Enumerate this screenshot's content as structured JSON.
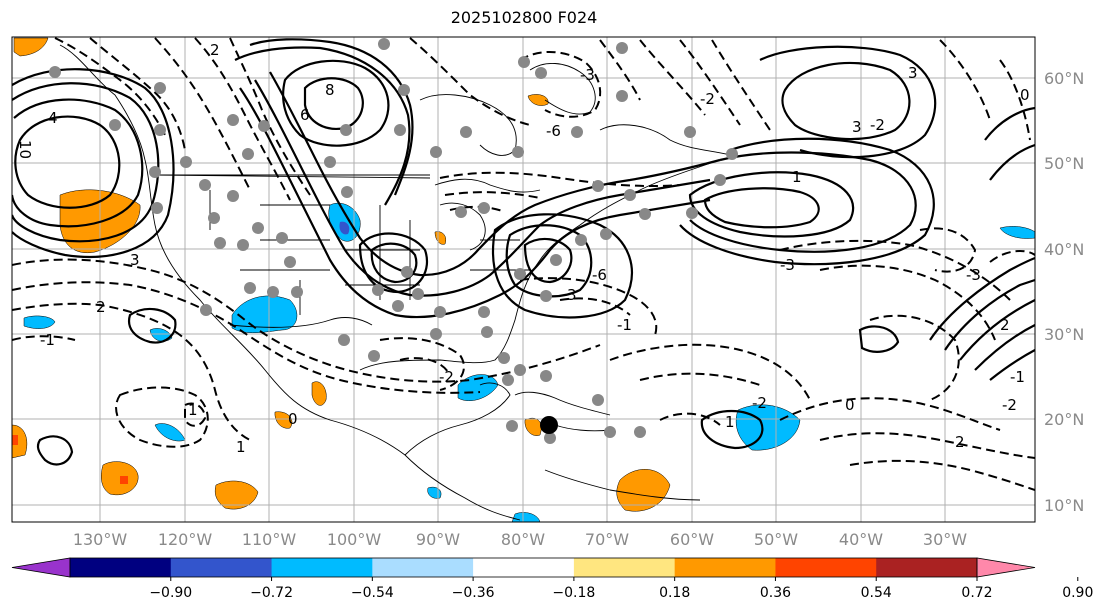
{
  "title": "2025102800 F024",
  "latitude_labels": [
    "60°N",
    "50°N",
    "40°N",
    "30°N",
    "20°N",
    "10°N"
  ],
  "longitude_labels": [
    "130°W",
    "120°W",
    "110°W",
    "100°W",
    "90°W",
    "80°W",
    "70°W",
    "60°W",
    "50°W",
    "40°W",
    "30°W"
  ],
  "colorbar": {
    "tick_labels": [
      "−0.90",
      "−0.72",
      "−0.54",
      "−0.36",
      "−0.18",
      "0.18",
      "0.36",
      "0.54",
      "0.72",
      "0.90"
    ],
    "colors": [
      "#9933cc",
      "#000080",
      "#3355cc",
      "#00bbff",
      "#aaddff",
      "#ffffff",
      "#ffe680",
      "#ff9900",
      "#ff4400",
      "#aa2222",
      "#ff88aa"
    ]
  },
  "contour_labels": [
    "2",
    "8",
    "6",
    "10",
    "4",
    "3",
    "-6",
    "-2",
    "3",
    "-1",
    "-3",
    "2",
    "-2",
    "1",
    "0",
    "-1",
    "-3",
    "2",
    "3",
    "1",
    "0",
    "-3",
    "3",
    "-6",
    "1",
    "-1",
    "-2",
    "-2",
    "0",
    "-2",
    "2",
    "1"
  ]
}
